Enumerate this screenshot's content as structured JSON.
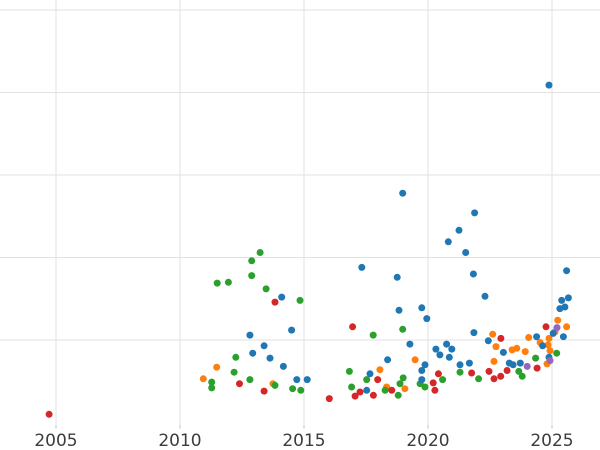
{
  "chart_data": {
    "type": "scatter",
    "title": "",
    "xlabel": "",
    "ylabel": "",
    "grid": true,
    "legend": false,
    "background_color": "#ffffff",
    "gridline_color": "#e2e2e2",
    "tick_label_color": "#3c3c3c",
    "x_ticks": [
      2005,
      2010,
      2015,
      2020,
      2025
    ],
    "x_tick_labels": [
      "2005",
      "2010",
      "2015",
      "2020",
      "2025"
    ],
    "x_range": [
      2002.7,
      2026.9
    ],
    "y_gridline_units": [
      0,
      1,
      2,
      3,
      4,
      5
    ],
    "y_tick_labels_visible": false,
    "y_unit_note": "y-axis tick labels cropped off-frame; y expressed in gridline units (0 = bottom axis, 1 per gridline)",
    "marker_radius_px": 3.5,
    "series": [
      {
        "name": "orange",
        "color": "#ff7f0e",
        "points": [
          [
            2011.48,
            0.67
          ],
          [
            2010.94,
            0.53
          ],
          [
            2013.75,
            0.47
          ],
          [
            2018.06,
            0.64
          ],
          [
            2018.33,
            0.43
          ],
          [
            2019.07,
            0.41
          ],
          [
            2019.48,
            0.76
          ],
          [
            2022.61,
            1.07
          ],
          [
            2022.74,
            0.92
          ],
          [
            2022.66,
            0.74
          ],
          [
            2023.39,
            0.88
          ],
          [
            2023.58,
            0.9
          ],
          [
            2023.92,
            0.86
          ],
          [
            2024.06,
            1.03
          ],
          [
            2024.52,
            0.97
          ],
          [
            2024.88,
            1.02
          ],
          [
            2024.84,
            0.94
          ],
          [
            2024.92,
            0.87
          ],
          [
            2025.23,
            1.24
          ],
          [
            2025.59,
            1.16
          ],
          [
            2025.12,
            1.1
          ],
          [
            2024.8,
            0.71
          ]
        ]
      },
      {
        "name": "green",
        "color": "#2ca02c",
        "points": [
          [
            2013.23,
            2.06
          ],
          [
            2012.89,
            1.96
          ],
          [
            2011.5,
            1.69
          ],
          [
            2011.95,
            1.7
          ],
          [
            2012.89,
            1.78
          ],
          [
            2013.47,
            1.62
          ],
          [
            2014.84,
            1.48
          ],
          [
            2012.25,
            0.79
          ],
          [
            2012.18,
            0.61
          ],
          [
            2011.28,
            0.49
          ],
          [
            2011.28,
            0.42
          ],
          [
            2012.82,
            0.52
          ],
          [
            2013.83,
            0.45
          ],
          [
            2014.54,
            0.41
          ],
          [
            2014.87,
            0.39
          ],
          [
            2016.83,
            0.62
          ],
          [
            2016.92,
            0.43
          ],
          [
            2017.53,
            0.52
          ],
          [
            2017.79,
            1.06
          ],
          [
            2018.27,
            0.39
          ],
          [
            2018.8,
            0.33
          ],
          [
            2019.0,
            0.54
          ],
          [
            2018.87,
            0.47
          ],
          [
            2018.98,
            1.13
          ],
          [
            2019.88,
            0.43
          ],
          [
            2019.68,
            0.47
          ],
          [
            2020.59,
            0.52
          ],
          [
            2021.29,
            0.61
          ],
          [
            2022.04,
            0.53
          ],
          [
            2024.34,
            0.78
          ],
          [
            2023.66,
            0.62
          ],
          [
            2023.8,
            0.56
          ],
          [
            2025.19,
            0.84
          ]
        ]
      },
      {
        "name": "red",
        "color": "#d62728",
        "points": [
          [
            2004.72,
            0.1
          ],
          [
            2013.83,
            1.46
          ],
          [
            2016.96,
            1.16
          ],
          [
            2012.4,
            0.47
          ],
          [
            2013.39,
            0.38
          ],
          [
            2016.02,
            0.29
          ],
          [
            2017.06,
            0.32
          ],
          [
            2017.26,
            0.37
          ],
          [
            2017.8,
            0.33
          ],
          [
            2017.97,
            0.52
          ],
          [
            2018.54,
            0.39
          ],
          [
            2020.21,
            0.48
          ],
          [
            2020.28,
            0.39
          ],
          [
            2020.42,
            0.59
          ],
          [
            2021.76,
            0.6
          ],
          [
            2022.46,
            0.62
          ],
          [
            2022.66,
            0.53
          ],
          [
            2022.93,
            0.56
          ],
          [
            2023.19,
            0.63
          ],
          [
            2024.4,
            0.66
          ],
          [
            2022.94,
            1.02
          ],
          [
            2024.76,
            1.16
          ]
        ]
      },
      {
        "name": "blue",
        "color": "#1f77b4",
        "points": [
          [
            2024.88,
            4.09
          ],
          [
            2018.98,
            2.78
          ],
          [
            2021.88,
            2.54
          ],
          [
            2021.25,
            2.33
          ],
          [
            2020.82,
            2.19
          ],
          [
            2021.52,
            2.06
          ],
          [
            2021.83,
            1.8
          ],
          [
            2025.59,
            1.84
          ],
          [
            2022.3,
            1.53
          ],
          [
            2025.66,
            1.51
          ],
          [
            2025.39,
            1.48
          ],
          [
            2025.52,
            1.4
          ],
          [
            2025.32,
            1.38
          ],
          [
            2017.33,
            1.88
          ],
          [
            2018.76,
            1.76
          ],
          [
            2018.83,
            1.36
          ],
          [
            2019.75,
            1.39
          ],
          [
            2019.95,
            1.26
          ],
          [
            2019.27,
            0.95
          ],
          [
            2014.1,
            1.52
          ],
          [
            2014.5,
            1.12
          ],
          [
            2012.82,
            1.06
          ],
          [
            2013.39,
            0.93
          ],
          [
            2012.93,
            0.84
          ],
          [
            2013.63,
            0.78
          ],
          [
            2014.17,
            0.68
          ],
          [
            2014.71,
            0.52
          ],
          [
            2015.13,
            0.52
          ],
          [
            2017.66,
            0.59
          ],
          [
            2017.53,
            0.39
          ],
          [
            2018.37,
            0.76
          ],
          [
            2019.75,
            0.52
          ],
          [
            2020.32,
            0.89
          ],
          [
            2020.75,
            0.95
          ],
          [
            2020.96,
            0.89
          ],
          [
            2020.48,
            0.82
          ],
          [
            2020.86,
            0.79
          ],
          [
            2019.88,
            0.7
          ],
          [
            2019.75,
            0.63
          ],
          [
            2021.29,
            0.7
          ],
          [
            2021.67,
            0.72
          ],
          [
            2021.85,
            1.09
          ],
          [
            2022.43,
            0.99
          ],
          [
            2023.04,
            0.85
          ],
          [
            2023.28,
            0.72
          ],
          [
            2023.43,
            0.7
          ],
          [
            2023.72,
            0.72
          ],
          [
            2024.38,
            1.04
          ],
          [
            2024.62,
            0.93
          ],
          [
            2025.05,
            1.08
          ],
          [
            2025.46,
            1.04
          ],
          [
            2024.88,
            0.79
          ]
        ]
      },
      {
        "name": "purple",
        "color": "#9467bd",
        "points": [
          [
            2025.2,
            1.15
          ],
          [
            2024.92,
            0.75
          ],
          [
            2024.0,
            0.68
          ]
        ]
      }
    ]
  }
}
